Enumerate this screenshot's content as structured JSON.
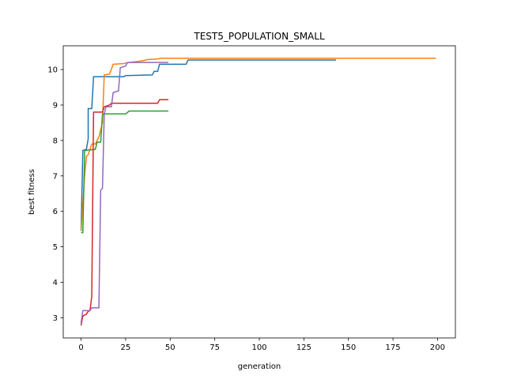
{
  "chart_data": {
    "type": "line",
    "title": "TEST5_POPULATION_SMALL",
    "xlabel": "generation",
    "ylabel": "best fitness",
    "xlim": [
      -10,
      210
    ],
    "ylim": [
      2.43,
      10.67
    ],
    "xticks": [
      0,
      25,
      50,
      75,
      100,
      125,
      150,
      175,
      200
    ],
    "yticks": [
      3,
      4,
      5,
      6,
      7,
      8,
      9,
      10
    ],
    "grid": false,
    "legend": "none",
    "series": [
      {
        "color": "#1f77b4",
        "points": [
          [
            0,
            5.45
          ],
          [
            1,
            7.72
          ],
          [
            3,
            7.75
          ],
          [
            4,
            8.05
          ],
          [
            4,
            8.9
          ],
          [
            6,
            8.9
          ],
          [
            7,
            9.8
          ],
          [
            24,
            9.8
          ],
          [
            25,
            9.83
          ],
          [
            40,
            9.85
          ],
          [
            41,
            9.95
          ],
          [
            43,
            9.95
          ],
          [
            44,
            10.15
          ],
          [
            59,
            10.15
          ],
          [
            60,
            10.27
          ],
          [
            143,
            10.27
          ]
        ]
      },
      {
        "color": "#ff7f0e",
        "points": [
          [
            0,
            5.45
          ],
          [
            2,
            7.0
          ],
          [
            3,
            7.55
          ],
          [
            4,
            7.6
          ],
          [
            6,
            7.9
          ],
          [
            8,
            7.9
          ],
          [
            10,
            8.1
          ],
          [
            12,
            8.5
          ],
          [
            13,
            9.85
          ],
          [
            16,
            9.87
          ],
          [
            18,
            10.15
          ],
          [
            24,
            10.17
          ],
          [
            27,
            10.2
          ],
          [
            35,
            10.25
          ],
          [
            37,
            10.28
          ],
          [
            43,
            10.3
          ],
          [
            45,
            10.32
          ],
          [
            199,
            10.32
          ]
        ]
      },
      {
        "color": "#2ca02c",
        "points": [
          [
            0,
            5.4
          ],
          [
            1,
            5.4
          ],
          [
            2,
            7.72
          ],
          [
            8,
            7.75
          ],
          [
            9,
            7.95
          ],
          [
            11,
            7.95
          ],
          [
            12,
            8.75
          ],
          [
            25,
            8.75
          ],
          [
            27,
            8.83
          ],
          [
            49,
            8.83
          ]
        ]
      },
      {
        "color": "#d62728",
        "points": [
          [
            0,
            2.78
          ],
          [
            1,
            3.05
          ],
          [
            3,
            3.1
          ],
          [
            4,
            3.18
          ],
          [
            5,
            3.2
          ],
          [
            6,
            3.6
          ],
          [
            7,
            8.8
          ],
          [
            12,
            8.8
          ],
          [
            13,
            8.95
          ],
          [
            16,
            9.0
          ],
          [
            17,
            9.05
          ],
          [
            43,
            9.05
          ],
          [
            44,
            9.15
          ],
          [
            49,
            9.15
          ]
        ]
      },
      {
        "color": "#9467bd",
        "points": [
          [
            0,
            2.85
          ],
          [
            1,
            3.2
          ],
          [
            5,
            3.2
          ],
          [
            6,
            3.28
          ],
          [
            10,
            3.28
          ],
          [
            11,
            6.6
          ],
          [
            12,
            6.65
          ],
          [
            13,
            8.75
          ],
          [
            14,
            8.95
          ],
          [
            17,
            8.95
          ],
          [
            18,
            9.35
          ],
          [
            21,
            9.4
          ],
          [
            22,
            10.05
          ],
          [
            25,
            10.1
          ],
          [
            26,
            10.2
          ],
          [
            49,
            10.2
          ]
        ]
      }
    ]
  }
}
